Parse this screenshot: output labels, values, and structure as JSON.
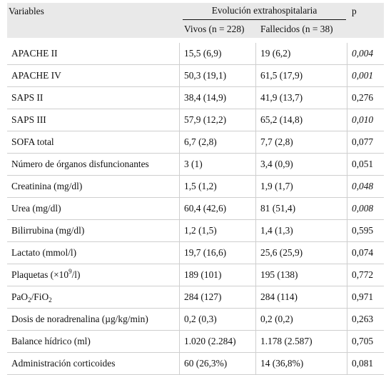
{
  "header": {
    "variables": "Variables",
    "group": "Evolución extrahospitalaria",
    "p": "p",
    "alive": "Vivos (n = 228)",
    "dead": "Fallecidos (n = 38)"
  },
  "rows": [
    {
      "label": "APACHE II",
      "alive": "15,5 (6,9)",
      "dead": "19 (6,2)",
      "p": "0,004",
      "p_italic": true
    },
    {
      "label": "APACHE IV",
      "alive": "50,3 (19,1)",
      "dead": "61,5 (17,9)",
      "p": "0,001",
      "p_italic": true
    },
    {
      "label": "SAPS II",
      "alive": "38,4 (14,9)",
      "dead": "41,9 (13,7)",
      "p": "0,276",
      "p_italic": false
    },
    {
      "label": "SAPS III",
      "alive": "57,9 (12,2)",
      "dead": "65,2 (14,8)",
      "p": "0,010",
      "p_italic": true
    },
    {
      "label": "SOFA total",
      "alive": "6,7 (2,8)",
      "dead": "7,7 (2,8)",
      "p": "0,077",
      "p_italic": false
    },
    {
      "label": "Número de órganos disfuncionantes",
      "alive": "3 (1)",
      "dead": "3,4 (0,9)",
      "p": "0,051",
      "p_italic": false
    },
    {
      "label": "Creatinina (mg/dl)",
      "alive": "1,5 (1,2)",
      "dead": "1,9 (1,7)",
      "p": "0,048",
      "p_italic": true
    },
    {
      "label": "Urea (mg/dl)",
      "alive": "60,4 (42,6)",
      "dead": "81 (51,4)",
      "p": "0,008",
      "p_italic": true
    },
    {
      "label": "Bilirrubina (mg/dl)",
      "alive": "1,2 (1,5)",
      "dead": "1,4 (1,3)",
      "p": "0,595",
      "p_italic": false
    },
    {
      "label": "Lactato (mmol/l)",
      "alive": "19,7 (16,6)",
      "dead": "25,6 (25,9)",
      "p": "0,074",
      "p_italic": false
    },
    {
      "label_parts": [
        "Plaquetas (×10",
        "9",
        "/l)"
      ],
      "label_format": "sup",
      "alive": "189 (101)",
      "dead": "195 (138)",
      "p": "0,772",
      "p_italic": false
    },
    {
      "label_parts": [
        "PaO",
        "2",
        "/FiO",
        "2"
      ],
      "label_format": "sub",
      "alive": "284 (127)",
      "dead": "284 (114)",
      "p": "0,971",
      "p_italic": false
    },
    {
      "label": "Dosis de noradrenalina (µg/kg/min)",
      "alive": "0,2 (0,3)",
      "dead": "0,2 (0,2)",
      "p": "0,263",
      "p_italic": false
    },
    {
      "label": "Balance hídrico (ml)",
      "alive": "1.020 (2.284)",
      "dead": "1.178 (2.587)",
      "p": "0,705",
      "p_italic": false
    },
    {
      "label": "Administración corticoides",
      "alive": "60 (26,3%)",
      "dead": "14 (36,8%)",
      "p": "0,081",
      "p_italic": false
    }
  ]
}
